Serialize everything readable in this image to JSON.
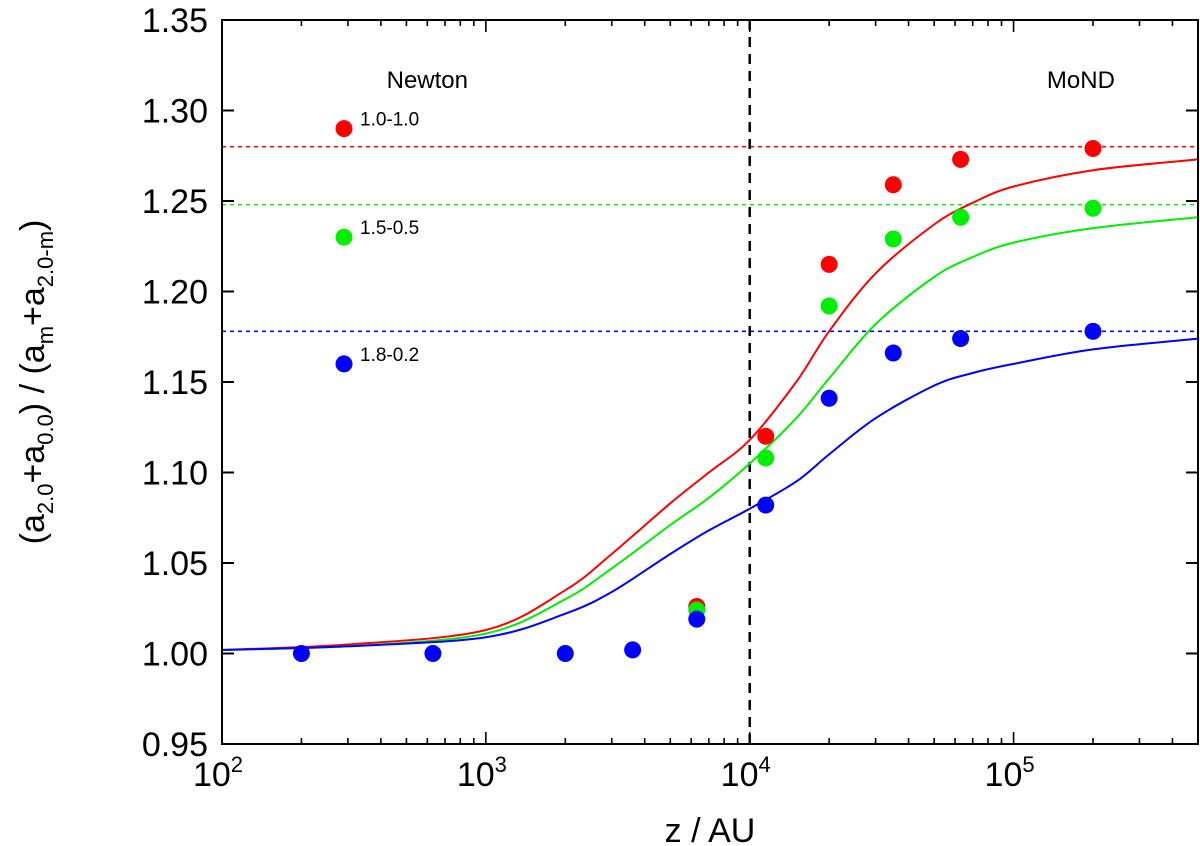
{
  "chart_data": {
    "type": "scatter",
    "xscale": "log",
    "xlim": [
      100,
      500000
    ],
    "ylim": [
      0.95,
      1.35
    ],
    "xlabel": "z / AU",
    "ylabel": {
      "open": "(a",
      "sub1": "2.0",
      "mid1": "+a",
      "sub2": "0.0",
      "mid2": ") / (a",
      "sub3": "m",
      "mid3": "+a",
      "sub4": "2.0-m",
      "close": ")"
    },
    "xticks": [
      {
        "value": 100,
        "base": "10",
        "exp": "2"
      },
      {
        "value": 1000,
        "base": "10",
        "exp": "3"
      },
      {
        "value": 10000,
        "base": "10",
        "exp": "4"
      },
      {
        "value": 100000,
        "base": "10",
        "exp": "5"
      }
    ],
    "yticks": [
      {
        "value": 0.95,
        "label": "0.95"
      },
      {
        "value": 1.0,
        "label": "1.00"
      },
      {
        "value": 1.05,
        "label": "1.05"
      },
      {
        "value": 1.1,
        "label": "1.10"
      },
      {
        "value": 1.15,
        "label": "1.15"
      },
      {
        "value": 1.2,
        "label": "1.20"
      },
      {
        "value": 1.25,
        "label": "1.25"
      },
      {
        "value": 1.3,
        "label": "1.30"
      },
      {
        "value": 1.35,
        "label": "1.35"
      }
    ],
    "regions": [
      {
        "label": "Newton",
        "x": 600,
        "y": 1.33
      },
      {
        "label": "MoND",
        "x": 180000,
        "y": 1.33
      }
    ],
    "vline": {
      "x": 10000,
      "color": "#000000",
      "style": "dashed"
    },
    "legend": [
      {
        "label": "1.0-1.0",
        "color": "#ff0000",
        "x": 290,
        "y": 1.29
      },
      {
        "label": "1.5-0.5",
        "color": "#00ee00",
        "x": 290,
        "y": 1.23
      },
      {
        "label": "1.8-0.2",
        "color": "#0000ff",
        "x": 290,
        "y": 1.16
      }
    ],
    "series": [
      {
        "color": "#ff0000",
        "asymptote": 1.28,
        "curve": [
          [
            100,
            1.002
          ],
          [
            300,
            1.005
          ],
          [
            1000,
            1.013
          ],
          [
            2000,
            1.035
          ],
          [
            3000,
            1.055
          ],
          [
            5000,
            1.083
          ],
          [
            7000,
            1.1
          ],
          [
            10000,
            1.118
          ],
          [
            15000,
            1.15
          ],
          [
            20000,
            1.178
          ],
          [
            30000,
            1.21
          ],
          [
            50000,
            1.237
          ],
          [
            70000,
            1.249
          ],
          [
            100000,
            1.258
          ],
          [
            200000,
            1.267
          ],
          [
            500000,
            1.273
          ]
        ],
        "points": [
          [
            6300,
            1.026
          ],
          [
            11500,
            1.12
          ],
          [
            20000,
            1.215
          ],
          [
            35000,
            1.259
          ],
          [
            63000,
            1.273
          ],
          [
            200000,
            1.279
          ]
        ]
      },
      {
        "color": "#00ee00",
        "asymptote": 1.248,
        "curve": [
          [
            100,
            1.002
          ],
          [
            300,
            1.004
          ],
          [
            1000,
            1.011
          ],
          [
            2000,
            1.03
          ],
          [
            3000,
            1.047
          ],
          [
            5000,
            1.071
          ],
          [
            7000,
            1.086
          ],
          [
            10000,
            1.105
          ],
          [
            15000,
            1.13
          ],
          [
            20000,
            1.152
          ],
          [
            30000,
            1.182
          ],
          [
            50000,
            1.208
          ],
          [
            70000,
            1.219
          ],
          [
            100000,
            1.227
          ],
          [
            200000,
            1.235
          ],
          [
            500000,
            1.241
          ]
        ],
        "points": [
          [
            6300,
            1.024
          ],
          [
            11500,
            1.108
          ],
          [
            20000,
            1.192
          ],
          [
            35000,
            1.229
          ],
          [
            63000,
            1.241
          ],
          [
            200000,
            1.246
          ]
        ]
      },
      {
        "color": "#0000ff",
        "asymptote": 1.178,
        "curve": [
          [
            100,
            1.002
          ],
          [
            300,
            1.004
          ],
          [
            1000,
            1.009
          ],
          [
            2000,
            1.022
          ],
          [
            3000,
            1.034
          ],
          [
            5000,
            1.055
          ],
          [
            7000,
            1.068
          ],
          [
            10000,
            1.08
          ],
          [
            15000,
            1.095
          ],
          [
            20000,
            1.11
          ],
          [
            30000,
            1.13
          ],
          [
            50000,
            1.148
          ],
          [
            70000,
            1.155
          ],
          [
            100000,
            1.16
          ],
          [
            200000,
            1.168
          ],
          [
            500000,
            1.174
          ]
        ],
        "points": [
          [
            200,
            1.0
          ],
          [
            630,
            1.0
          ],
          [
            2000,
            1.0
          ],
          [
            3600,
            1.002
          ],
          [
            6300,
            1.019
          ],
          [
            11500,
            1.082
          ],
          [
            20000,
            1.141
          ],
          [
            35000,
            1.166
          ],
          [
            63000,
            1.174
          ],
          [
            200000,
            1.178
          ]
        ]
      }
    ]
  }
}
